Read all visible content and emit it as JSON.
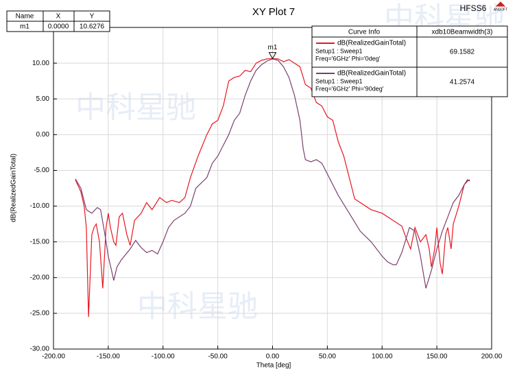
{
  "chart_data": {
    "type": "line",
    "title": "XY Plot 7",
    "brand": "HFSS6",
    "logo": "ANSOFT",
    "watermark": "中科星驰",
    "x_label": "Theta [deg]",
    "y_label": "dB(RealizedGainTotal)",
    "xlim": [
      -200,
      200
    ],
    "ylim": [
      -30,
      15
    ],
    "xticks": [
      {
        "value": -200,
        "label": "-200.00"
      },
      {
        "value": -150,
        "label": "-150.00"
      },
      {
        "value": -100,
        "label": "-100.00"
      },
      {
        "value": -50,
        "label": "-50.00"
      },
      {
        "value": 0,
        "label": "0.00"
      },
      {
        "value": 50,
        "label": "50.00"
      },
      {
        "value": 100,
        "label": "100.00"
      },
      {
        "value": 150,
        "label": "150.00"
      },
      {
        "value": 200,
        "label": "200.00"
      }
    ],
    "yticks": [
      {
        "value": -30,
        "label": "-30.00"
      },
      {
        "value": -25,
        "label": "-25.00"
      },
      {
        "value": -20,
        "label": "-20.00"
      },
      {
        "value": -15,
        "label": "-15.00"
      },
      {
        "value": -10,
        "label": "-10.00"
      },
      {
        "value": -5,
        "label": "-5.00"
      },
      {
        "value": 0,
        "label": "0.00"
      },
      {
        "value": 5,
        "label": "5.00"
      },
      {
        "value": 10,
        "label": "10.00"
      }
    ],
    "grid": true,
    "legend": {
      "headers": [
        "Curve Info",
        "xdb10Beamwidth(3)"
      ]
    },
    "series": [
      {
        "name": "dB(RealizedGainTotal)",
        "setup": "Setup1 : Sweep1",
        "freq": "Freq='6GHz' Phi='0deg'",
        "beamwidth": 69.1582,
        "color": "#e8141e",
        "x": [
          -180,
          -175,
          -172,
          -170,
          -168,
          -165,
          -163,
          -161,
          -158,
          -155,
          -152,
          -150,
          -148,
          -145,
          -143,
          -140,
          -137,
          -133,
          -130,
          -126,
          -120,
          -115,
          -110,
          -103,
          -97,
          -92,
          -85,
          -80,
          -75,
          -68,
          -60,
          -55,
          -50,
          -45,
          -40,
          -35,
          -30,
          -25,
          -20,
          -15,
          -10,
          -5,
          0,
          5,
          10,
          15,
          20,
          25,
          30,
          35,
          40,
          45,
          50,
          55,
          60,
          65,
          70,
          75,
          80,
          90,
          100,
          110,
          118,
          122,
          126,
          130,
          135,
          140,
          143,
          145,
          148,
          150,
          153,
          155,
          158,
          160,
          163,
          165,
          170,
          175,
          178,
          180
        ],
        "values": [
          -6.3,
          -8,
          -10,
          -13,
          -25.5,
          -14,
          -13,
          -12.5,
          -15,
          -21.5,
          -13,
          -11,
          -13,
          -15,
          -15.5,
          -11.5,
          -11,
          -14,
          -15.5,
          -12,
          -11,
          -9.5,
          -10.5,
          -8.8,
          -9.5,
          -9.2,
          -9.5,
          -8.8,
          -6,
          -3,
          0,
          1.5,
          2,
          4,
          7.5,
          8,
          8.2,
          9,
          8.8,
          10,
          10.4,
          10.6,
          10.63,
          10.6,
          10.2,
          10.5,
          10,
          9.5,
          7,
          6.5,
          4.5,
          4,
          2.5,
          2,
          -1,
          -3,
          -6,
          -9,
          -9.5,
          -10.5,
          -11,
          -12,
          -12.8,
          -14.5,
          -16,
          -13,
          -15,
          -14,
          -16,
          -18.5,
          -16,
          -13,
          -18,
          -19.5,
          -14,
          -13,
          -16,
          -12.5,
          -10,
          -7,
          -6.5,
          -6.3
        ]
      },
      {
        "name": "dB(RealizedGainTotal)",
        "setup": "Setup1 : Sweep1",
        "freq": "Freq='6GHz' Phi='90deg'",
        "beamwidth": 41.2574,
        "color": "#7a3e6e",
        "x": [
          -180,
          -175,
          -170,
          -165,
          -160,
          -157,
          -153,
          -150,
          -147,
          -145,
          -142,
          -138,
          -130,
          -125,
          -120,
          -115,
          -110,
          -105,
          -100,
          -95,
          -90,
          -80,
          -75,
          -70,
          -60,
          -55,
          -50,
          -45,
          -40,
          -35,
          -30,
          -25,
          -20,
          -15,
          -10,
          -5,
          0,
          5,
          10,
          15,
          20,
          25,
          28,
          30,
          35,
          40,
          45,
          50,
          60,
          70,
          80,
          90,
          100,
          105,
          110,
          113,
          118,
          125,
          130,
          135,
          140,
          145,
          150,
          155,
          160,
          165,
          170,
          175,
          178,
          180
        ],
        "values": [
          -6.2,
          -7.5,
          -10.5,
          -11,
          -10.2,
          -10.5,
          -14,
          -17,
          -19,
          -20.4,
          -18.5,
          -17.5,
          -16,
          -14.8,
          -15.8,
          -16.5,
          -16.2,
          -16.7,
          -15,
          -13,
          -12,
          -11,
          -10,
          -7.5,
          -6,
          -4,
          -3,
          -1.5,
          0,
          2,
          3,
          5.5,
          7.5,
          9,
          9.8,
          10.3,
          10.6,
          10.4,
          9.5,
          8,
          5.5,
          2,
          -2,
          -3.5,
          -3.8,
          -3.5,
          -4,
          -5.5,
          -8.5,
          -11,
          -13.5,
          -15,
          -17,
          -17.8,
          -18.2,
          -18.2,
          -16.5,
          -13,
          -13.5,
          -17,
          -21.5,
          -19,
          -16,
          -13.5,
          -11.5,
          -9.5,
          -8.5,
          -7,
          -6.3,
          -6.5
        ]
      }
    ],
    "marker": {
      "headers": [
        "Name",
        "X",
        "Y"
      ],
      "name": "m1",
      "x": 0,
      "x_label": "0.0000",
      "y": 10.6276,
      "y_label": "10.6276"
    }
  }
}
